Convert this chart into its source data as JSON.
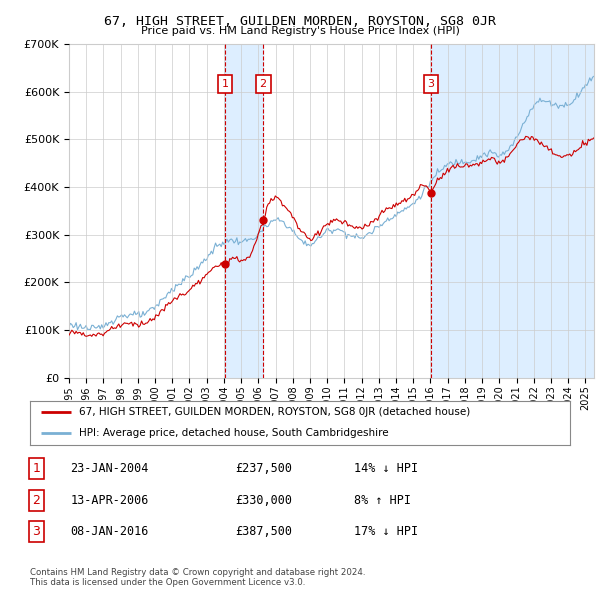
{
  "title": "67, HIGH STREET, GUILDEN MORDEN, ROYSTON, SG8 0JR",
  "subtitle": "Price paid vs. HM Land Registry's House Price Index (HPI)",
  "ylim": [
    0,
    700000
  ],
  "yticks": [
    0,
    100000,
    200000,
    300000,
    400000,
    500000,
    600000,
    700000
  ],
  "ytick_labels": [
    "£0",
    "£100K",
    "£200K",
    "£300K",
    "£400K",
    "£500K",
    "£600K",
    "£700K"
  ],
  "xlim_start": 1995.0,
  "xlim_end": 2025.5,
  "transactions": [
    {
      "num": 1,
      "date": "23-JAN-2004",
      "year": 2004.06,
      "price": 237500
    },
    {
      "num": 2,
      "date": "13-APR-2006",
      "year": 2006.28,
      "price": 330000
    },
    {
      "num": 3,
      "date": "08-JAN-2016",
      "year": 2016.03,
      "price": 387500
    }
  ],
  "legend_label_red": "67, HIGH STREET, GUILDEN MORDEN, ROYSTON, SG8 0JR (detached house)",
  "legend_label_blue": "HPI: Average price, detached house, South Cambridgeshire",
  "table_rows": [
    {
      "num": 1,
      "date": "23-JAN-2004",
      "price": "£237,500",
      "pct": "14% ↓ HPI"
    },
    {
      "num": 2,
      "date": "13-APR-2006",
      "price": "£330,000",
      "pct": "8% ↑ HPI"
    },
    {
      "num": 3,
      "date": "08-JAN-2016",
      "price": "£387,500",
      "pct": "17% ↓ HPI"
    }
  ],
  "footer": "Contains HM Land Registry data © Crown copyright and database right 2024.\nThis data is licensed under the Open Government Licence v3.0.",
  "background_color": "#ffffff",
  "grid_color": "#cccccc",
  "red_color": "#cc0000",
  "blue_color": "#7ab0d4",
  "shade_color": "#ddeeff",
  "marker_box_color": "#cc0000",
  "hpi_base": [
    [
      1995.0,
      103000
    ],
    [
      1995.5,
      105000
    ],
    [
      1996.0,
      107000
    ],
    [
      1996.5,
      109000
    ],
    [
      1997.0,
      113000
    ],
    [
      1997.5,
      118000
    ],
    [
      1998.0,
      122000
    ],
    [
      1998.5,
      127000
    ],
    [
      1999.0,
      133000
    ],
    [
      1999.5,
      142000
    ],
    [
      2000.0,
      152000
    ],
    [
      2000.5,
      165000
    ],
    [
      2001.0,
      178000
    ],
    [
      2001.5,
      195000
    ],
    [
      2002.0,
      215000
    ],
    [
      2002.5,
      238000
    ],
    [
      2003.0,
      258000
    ],
    [
      2003.5,
      272000
    ],
    [
      2004.0,
      278000
    ],
    [
      2004.5,
      282000
    ],
    [
      2005.0,
      286000
    ],
    [
      2005.5,
      295000
    ],
    [
      2006.0,
      307000
    ],
    [
      2006.5,
      318000
    ],
    [
      2007.0,
      325000
    ],
    [
      2007.5,
      320000
    ],
    [
      2008.0,
      308000
    ],
    [
      2008.5,
      292000
    ],
    [
      2009.0,
      285000
    ],
    [
      2009.5,
      292000
    ],
    [
      2010.0,
      302000
    ],
    [
      2010.5,
      306000
    ],
    [
      2011.0,
      305000
    ],
    [
      2011.5,
      302000
    ],
    [
      2012.0,
      300000
    ],
    [
      2012.5,
      305000
    ],
    [
      2013.0,
      312000
    ],
    [
      2013.5,
      325000
    ],
    [
      2014.0,
      342000
    ],
    [
      2014.5,
      358000
    ],
    [
      2015.0,
      372000
    ],
    [
      2015.5,
      388000
    ],
    [
      2016.0,
      405000
    ],
    [
      2016.5,
      425000
    ],
    [
      2017.0,
      445000
    ],
    [
      2017.5,
      458000
    ],
    [
      2018.0,
      462000
    ],
    [
      2018.5,
      460000
    ],
    [
      2019.0,
      462000
    ],
    [
      2019.5,
      465000
    ],
    [
      2020.0,
      462000
    ],
    [
      2020.5,
      480000
    ],
    [
      2021.0,
      510000
    ],
    [
      2021.5,
      545000
    ],
    [
      2022.0,
      570000
    ],
    [
      2022.5,
      575000
    ],
    [
      2023.0,
      572000
    ],
    [
      2023.5,
      575000
    ],
    [
      2024.0,
      580000
    ],
    [
      2024.5,
      595000
    ],
    [
      2025.0,
      610000
    ],
    [
      2025.5,
      625000
    ]
  ],
  "red_base": [
    [
      1995.0,
      90000
    ],
    [
      1995.5,
      91000
    ],
    [
      1996.0,
      93000
    ],
    [
      1996.5,
      95000
    ],
    [
      1997.0,
      97000
    ],
    [
      1997.5,
      101000
    ],
    [
      1998.0,
      105000
    ],
    [
      1998.5,
      109000
    ],
    [
      1999.0,
      115000
    ],
    [
      1999.5,
      122000
    ],
    [
      2000.0,
      130000
    ],
    [
      2000.5,
      142000
    ],
    [
      2001.0,
      155000
    ],
    [
      2001.5,
      168000
    ],
    [
      2002.0,
      185000
    ],
    [
      2002.5,
      205000
    ],
    [
      2003.0,
      220000
    ],
    [
      2003.5,
      230000
    ],
    [
      2004.06,
      237500
    ],
    [
      2004.5,
      242000
    ],
    [
      2005.0,
      248000
    ],
    [
      2005.5,
      258000
    ],
    [
      2006.28,
      330000
    ],
    [
      2006.5,
      360000
    ],
    [
      2007.0,
      375000
    ],
    [
      2007.5,
      358000
    ],
    [
      2008.0,
      338000
    ],
    [
      2008.5,
      310000
    ],
    [
      2009.0,
      295000
    ],
    [
      2009.5,
      305000
    ],
    [
      2010.0,
      318000
    ],
    [
      2010.5,
      325000
    ],
    [
      2011.0,
      325000
    ],
    [
      2011.5,
      320000
    ],
    [
      2012.0,
      318000
    ],
    [
      2012.5,
      325000
    ],
    [
      2013.0,
      332000
    ],
    [
      2013.5,
      348000
    ],
    [
      2014.0,
      362000
    ],
    [
      2014.5,
      375000
    ],
    [
      2015.0,
      388000
    ],
    [
      2015.5,
      408000
    ],
    [
      2016.03,
      387500
    ],
    [
      2016.5,
      412000
    ],
    [
      2017.0,
      435000
    ],
    [
      2017.5,
      448000
    ],
    [
      2018.0,
      452000
    ],
    [
      2018.5,
      448000
    ],
    [
      2019.0,
      450000
    ],
    [
      2019.5,
      452000
    ],
    [
      2020.0,
      448000
    ],
    [
      2020.5,
      465000
    ],
    [
      2021.0,
      495000
    ],
    [
      2021.5,
      510000
    ],
    [
      2022.0,
      498000
    ],
    [
      2022.5,
      482000
    ],
    [
      2023.0,
      472000
    ],
    [
      2023.5,
      468000
    ],
    [
      2024.0,
      472000
    ],
    [
      2024.5,
      478000
    ],
    [
      2025.0,
      490000
    ],
    [
      2025.5,
      498000
    ]
  ]
}
